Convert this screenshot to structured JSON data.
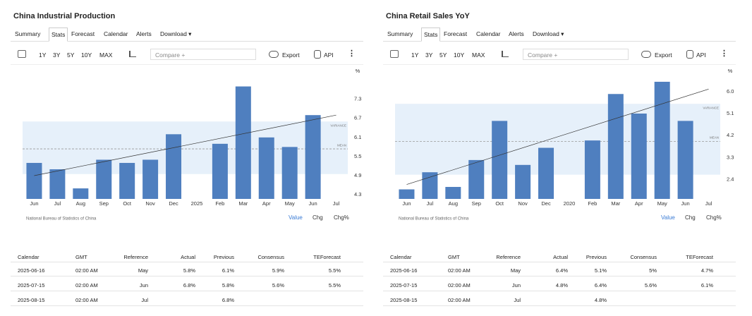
{
  "chart_data": [
    {
      "type": "bar",
      "title": "China Industrial Production",
      "unit": "%",
      "categories": [
        "Jun",
        "Jul",
        "Aug",
        "Sep",
        "Oct",
        "Nov",
        "Dec",
        "2025",
        "Feb",
        "Mar",
        "Apr",
        "May",
        "Jun",
        "Jul"
      ],
      "values": [
        5.3,
        5.1,
        4.5,
        5.4,
        5.3,
        5.4,
        6.2,
        null,
        5.9,
        7.7,
        6.1,
        5.8,
        6.8,
        null
      ],
      "color": "#4f7fbf",
      "ylim": [
        4.17,
        8.0
      ],
      "yticks": [
        4.3,
        4.9,
        5.5,
        6.1,
        6.7,
        7.3
      ],
      "variance_band": [
        4.95,
        6.6
      ],
      "variance_label": "VARIANCE",
      "mean": 5.74,
      "mean_label": "MEAN",
      "trend": [
        4.9,
        6.8
      ]
    },
    {
      "type": "bar",
      "title": "China Retail Sales YoY",
      "unit": "%",
      "categories": [
        "Jun",
        "Jul",
        "Aug",
        "Sep",
        "Oct",
        "Nov",
        "Dec",
        "2020",
        "Feb",
        "Mar",
        "Apr",
        "May",
        "Jun",
        "Jul"
      ],
      "values": [
        2.0,
        2.7,
        2.1,
        3.2,
        4.8,
        3.0,
        3.7,
        null,
        4.0,
        5.9,
        5.1,
        6.4,
        4.8,
        null
      ],
      "color": "#4f7fbf",
      "ylim": [
        1.61,
        6.6
      ],
      "yticks": [
        2.4,
        3.3,
        4.2,
        5.1,
        {
          "value": 6,
          "label": "6.0"
        }
      ],
      "variance_band": [
        2.6,
        5.5
      ],
      "variance_label": "VARIANCE",
      "mean": 3.96,
      "mean_label": "MEAN",
      "trend": [
        2.2,
        6.1
      ]
    }
  ],
  "panels": [
    {
      "tabs": [
        "Summary",
        "Stats",
        "Forecast",
        "Calendar",
        "Alerts",
        "Download ▾"
      ],
      "toolbar": {
        "ranges": [
          "1Y",
          "3Y",
          "5Y",
          "10Y",
          "MAX"
        ],
        "compare": "Compare +",
        "export": "Export",
        "api": "API"
      },
      "source": "National Bureau of Statistics of China",
      "toggles": [
        "Value",
        "Chg",
        "Chg%"
      ],
      "table": {
        "header": [
          "Calendar",
          "GMT",
          "Reference",
          "Actual",
          "Previous",
          "Consensus",
          "TEForecast"
        ],
        "rows": [
          [
            "2025-06-16",
            "02:00 AM",
            "May",
            "5.8%",
            "6.1%",
            "5.9%",
            "5.5%"
          ],
          [
            "2025-07-15",
            "02:00 AM",
            "Jun",
            "6.8%",
            "5.8%",
            "5.6%",
            "5.5%"
          ],
          [
            "2025-08-15",
            "02:00 AM",
            "Jul",
            null,
            "6.8%",
            null,
            null
          ]
        ]
      }
    },
    {
      "tabs": [
        "Summary",
        "Stats",
        "Forecast",
        "Calendar",
        "Alerts",
        "Download ▾"
      ],
      "toolbar": {
        "ranges": [
          "1Y",
          "3Y",
          "5Y",
          "10Y",
          "MAX"
        ],
        "compare": "Compare +",
        "export": "Export",
        "api": "API"
      },
      "source": "National Bureau of Statistics of China",
      "toggles": [
        "Value",
        "Chg",
        "Chg%"
      ],
      "table": {
        "header": [
          "Calendar",
          "GMT",
          "Reference",
          "Actual",
          "Previous",
          "Consensus",
          "TEForecast"
        ],
        "rows": [
          [
            "2025-06-16",
            "02:00 AM",
            "May",
            "6.4%",
            "5.1%",
            "5%",
            "4.7%"
          ],
          [
            "2025-07-15",
            "02:00 AM",
            "Jun",
            "4.8%",
            "6.4%",
            "5.6%",
            "6.1%"
          ],
          [
            "2025-08-15",
            "02:00 AM",
            "Jul",
            null,
            "4.8%",
            null,
            null
          ]
        ]
      }
    }
  ]
}
